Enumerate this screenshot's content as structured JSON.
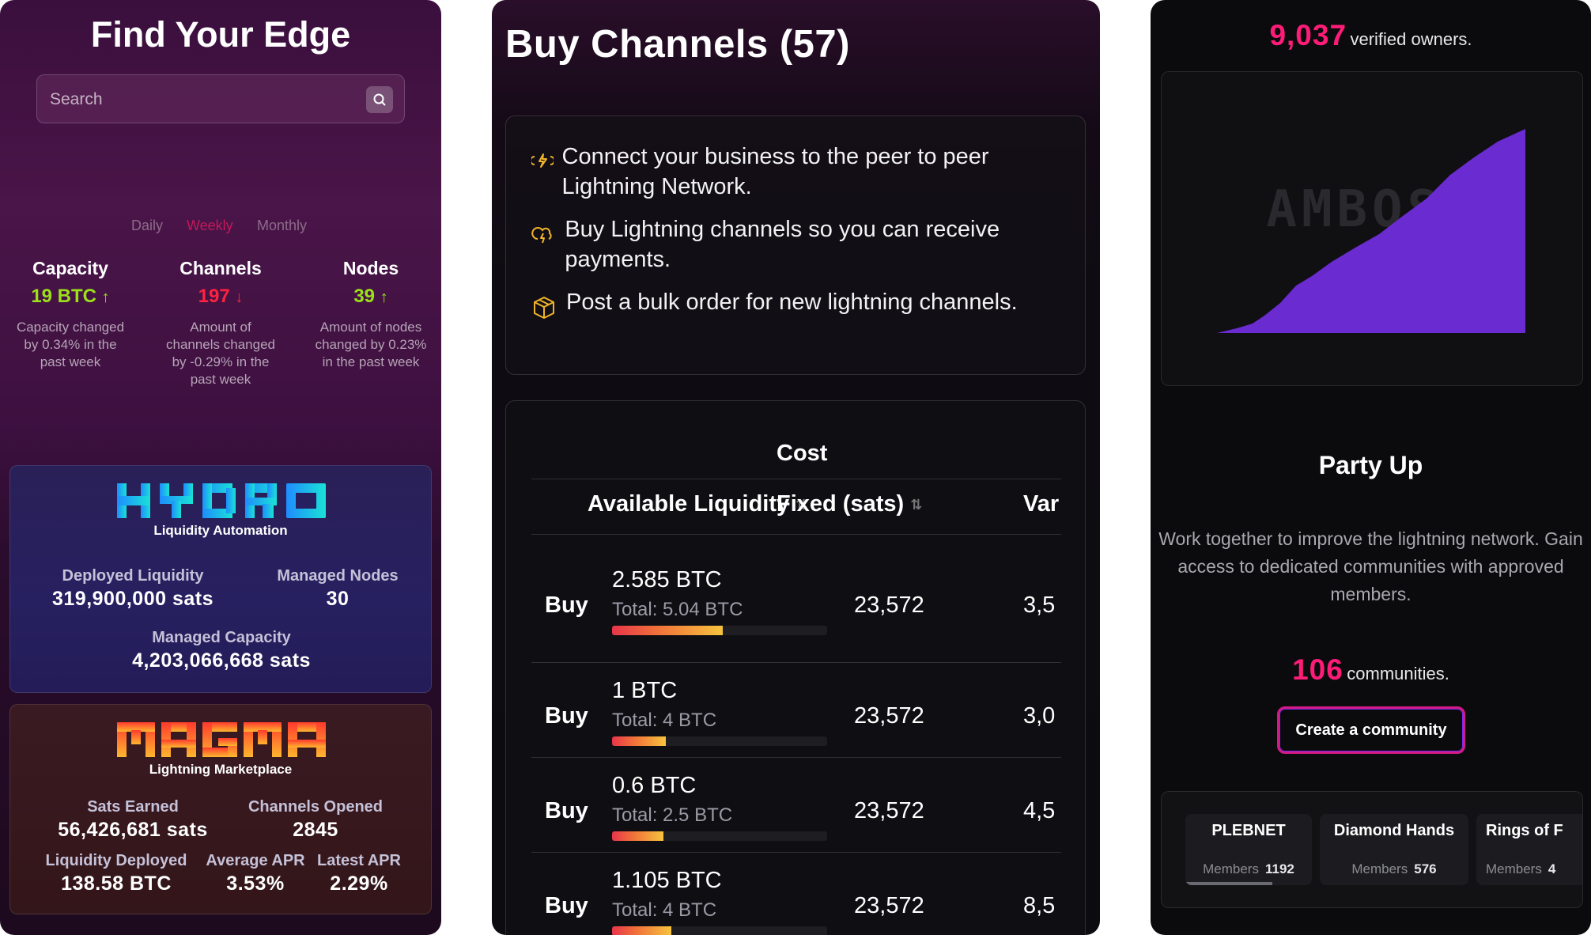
{
  "left": {
    "title": "Find Your Edge",
    "search_placeholder": "Search",
    "periods": [
      "Daily",
      "Weekly",
      "Monthly"
    ],
    "active_period": "Weekly",
    "stats": [
      {
        "label": "Capacity",
        "value": "19 BTC",
        "trend": "up",
        "color": "#9be01a",
        "desc": [
          "Capacity changed",
          "by 0.34% in the",
          "past week"
        ]
      },
      {
        "label": "Channels",
        "value": "197",
        "trend": "down",
        "color": "#ff2240",
        "desc": [
          "Amount of",
          "channels changed",
          "by -0.29% in the",
          "past week"
        ]
      },
      {
        "label": "Nodes",
        "value": "39",
        "trend": "up",
        "color": "#9be01a",
        "desc": [
          "Amount of nodes",
          "changed by 0.23%",
          "in the past week"
        ]
      }
    ],
    "hydro": {
      "logo": "HYDRO",
      "subtitle": "Liquidity Automation",
      "deployed_label": "Deployed Liquidity",
      "deployed_value": "319,900,000 sats",
      "nodes_label": "Managed Nodes",
      "nodes_value": "30",
      "capacity_label": "Managed Capacity",
      "capacity_value": "4,203,066,668 sats"
    },
    "magma": {
      "logo": "MAGMA",
      "subtitle": "Lightning Marketplace",
      "sats_label": "Sats Earned",
      "sats_value": "56,426,681 sats",
      "opened_label": "Channels Opened",
      "opened_value": "2845",
      "deployed_label": "Liquidity Deployed",
      "deployed_value": "138.58 BTC",
      "avg_label": "Average APR",
      "avg_value": "3.53%",
      "latest_label": "Latest APR",
      "latest_value": "2.29%"
    }
  },
  "middle": {
    "title": "Buy Channels (57)",
    "info": [
      {
        "icon": "lightning-plug-icon",
        "text": "Connect your business to the peer to peer Lightning Network."
      },
      {
        "icon": "cloud-lightning-icon",
        "text": "Buy Lightning channels so you can receive payments."
      },
      {
        "icon": "box-icon",
        "text": "Post a bulk order for new lightning channels."
      }
    ],
    "table": {
      "group_header": "Cost",
      "col_liquidity": "Available Liquidity",
      "col_fixed": "Fixed (sats)",
      "col_var": "Var",
      "rows": [
        {
          "action": "Buy",
          "liquidity": "2.585 BTC",
          "total": "Total: 5.04 BTC",
          "fill": 0.513,
          "fixed": "23,572",
          "var": "3,5"
        },
        {
          "action": "Buy",
          "liquidity": "1 BTC",
          "total": "Total: 4 BTC",
          "fill": 0.25,
          "fixed": "23,572",
          "var": "3,0"
        },
        {
          "action": "Buy",
          "liquidity": "0.6 BTC",
          "total": "Total: 2.5 BTC",
          "fill": 0.24,
          "fixed": "23,572",
          "var": "4,5"
        },
        {
          "action": "Buy",
          "liquidity": "1.105 BTC",
          "total": "Total: 4 BTC",
          "fill": 0.276,
          "fixed": "23,572",
          "var": "8,5"
        }
      ]
    }
  },
  "right": {
    "owners_count": "9,037",
    "owners_text": "verified owners.",
    "watermark": "AMBOSS",
    "party_title": "Party Up",
    "party_desc": "Work together to improve the lightning network. Gain access to dedicated communities with approved members.",
    "communities_count": "106",
    "communities_text": "communities.",
    "create_button": "Create a community",
    "groups": [
      {
        "name": "PLEBNET",
        "members_label": "Members",
        "members": "1192"
      },
      {
        "name": "Diamond Hands",
        "members_label": "Members",
        "members": "576"
      },
      {
        "name": "Rings of F",
        "members_label": "Members",
        "members": "4"
      }
    ],
    "accent_pink": "#ff1c78",
    "chart_color": "#6a2bd0"
  }
}
